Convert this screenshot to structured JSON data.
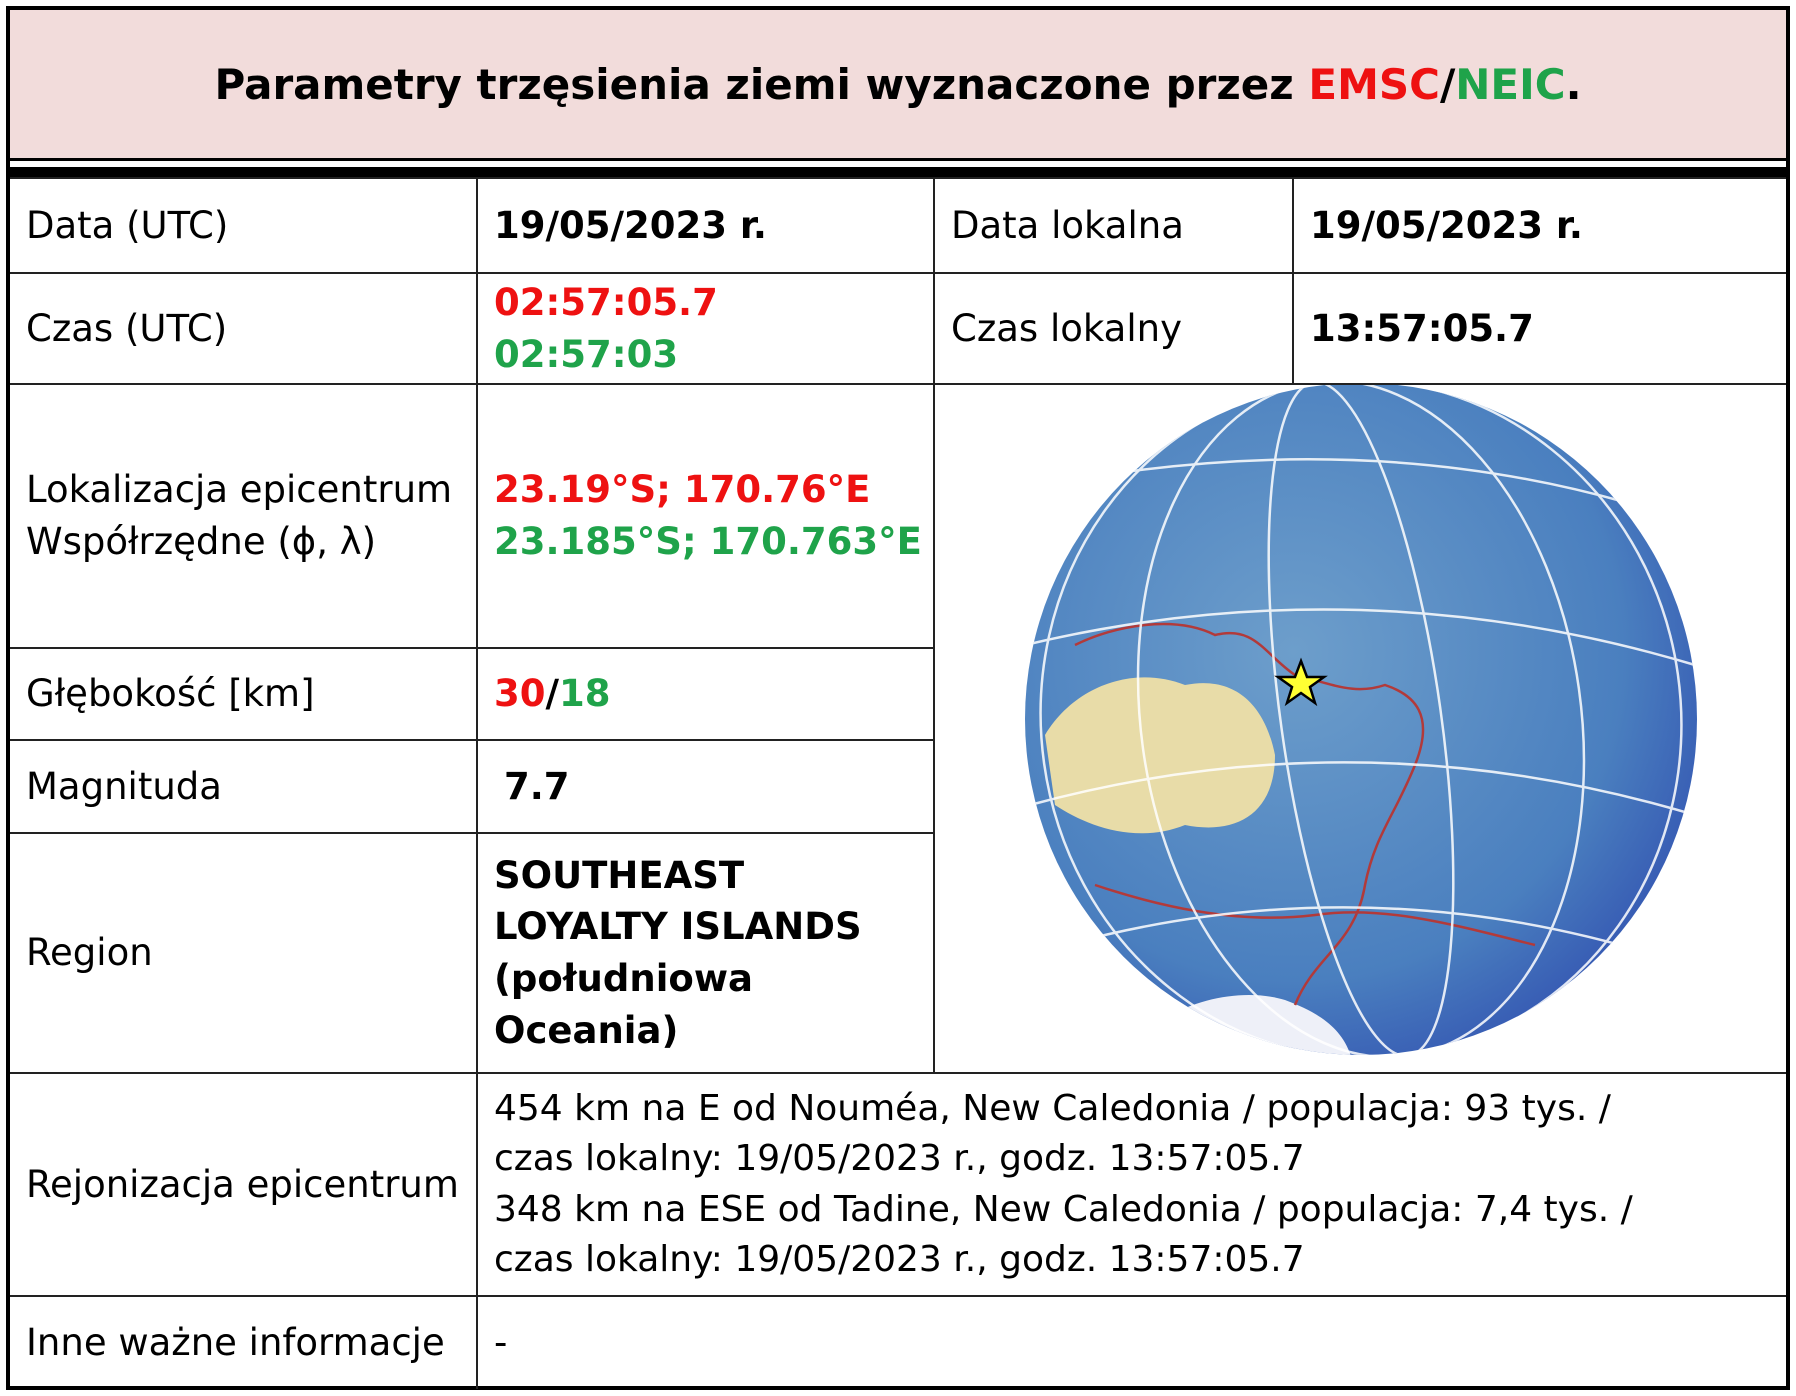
{
  "header": {
    "title_parts": [
      "Parametry trzęsienia ziemi wyznaczone przez ",
      "EMSC",
      "/",
      "NEIC",
      "."
    ]
  },
  "table": {
    "rows": [
      {
        "label": "Data (UTC)",
        "value": "19/05/2023 r.",
        "label2": "Data lokalna",
        "value2": "19/05/2023 r."
      },
      {
        "label": "Czas (UTC)",
        "emsc": "02:57:05.7",
        "neic": "02:57:03",
        "label2": "Czas lokalny",
        "value2": "13:57:05.7"
      },
      {
        "label_lines": [
          "Lokalizacja epicentrum",
          "Współrzędne (ϕ, λ)"
        ],
        "emsc": "23.19°S; 170.76°E",
        "neic": "23.185°S; 170.763°E"
      },
      {
        "label": "Głębokość [km]",
        "emsc": "30",
        "separator": "/",
        "neic": "18"
      },
      {
        "label": "Magnituda",
        "value": "7.7"
      },
      {
        "label": "Region",
        "value": "SOUTHEAST LOYALTY ISLANDS (południowa Oceania)"
      },
      {
        "label": "Rejonizacja epicentrum",
        "lines": [
          "454 km na E od Nouméa, New Caledonia / populacja: 93 tys. /",
          "czas lokalny: 19/05/2023 r., godz. 13:57:05.7",
          "348 km na ESE od Tadine, New Caledonia / populacja: 7,4 tys. /",
          "czas lokalny: 19/05/2023 r., godz. 13:57:05.7"
        ]
      },
      {
        "label": "Inne ważne informacje",
        "value": "-"
      }
    ]
  }
}
